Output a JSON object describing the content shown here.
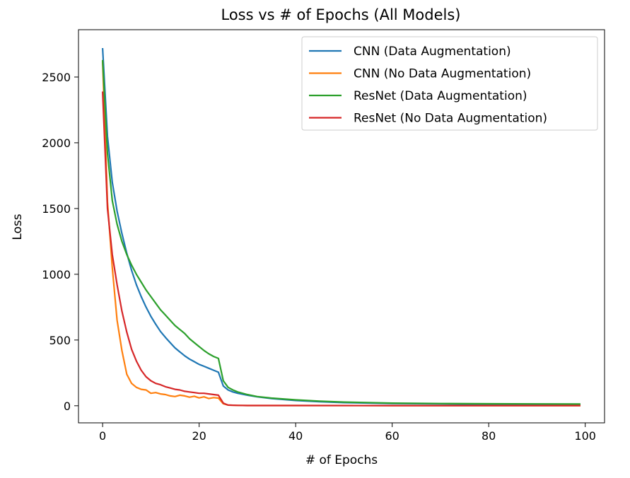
{
  "chart_data": {
    "type": "line",
    "title": "Loss vs # of Epochs (All Models)",
    "xlabel": "# of Epochs",
    "ylabel": "Loss",
    "xlim": [
      -5,
      104
    ],
    "ylim": [
      -130,
      2860
    ],
    "xticks": [
      0,
      20,
      40,
      60,
      80,
      100
    ],
    "yticks": [
      0,
      500,
      1000,
      1500,
      2000,
      2500
    ],
    "grid": false,
    "legend_position": "top-right",
    "series": [
      {
        "name": "CNN (Data Augmentation)",
        "color": "#1f77b4",
        "x": [
          0,
          1,
          2,
          3,
          4,
          5,
          6,
          7,
          8,
          9,
          10,
          11,
          12,
          13,
          14,
          15,
          16,
          17,
          18,
          19,
          20,
          21,
          22,
          23,
          24,
          25,
          26,
          27,
          28,
          30,
          32,
          35,
          40,
          45,
          50,
          60,
          70,
          80,
          90,
          99
        ],
        "values": [
          2720,
          2050,
          1700,
          1480,
          1310,
          1160,
          1030,
          920,
          830,
          750,
          680,
          620,
          565,
          520,
          480,
          440,
          410,
          380,
          355,
          335,
          315,
          300,
          285,
          270,
          255,
          150,
          120,
          105,
          95,
          80,
          68,
          55,
          40,
          30,
          24,
          17,
          14,
          12,
          11,
          10
        ]
      },
      {
        "name": "CNN (No Data Augmentation)",
        "color": "#ff7f0e",
        "x": [
          0,
          1,
          2,
          3,
          4,
          5,
          6,
          7,
          8,
          9,
          10,
          11,
          12,
          13,
          14,
          15,
          16,
          17,
          18,
          19,
          20,
          21,
          22,
          23,
          24,
          25,
          26,
          28,
          30,
          40,
          60,
          80,
          99
        ],
        "values": [
          2620,
          1550,
          1050,
          650,
          420,
          240,
          170,
          140,
          125,
          120,
          95,
          100,
          90,
          85,
          75,
          70,
          80,
          75,
          65,
          72,
          60,
          68,
          55,
          62,
          58,
          15,
          5,
          3,
          2,
          2,
          1,
          1,
          1
        ]
      },
      {
        "name": "ResNet (Data Augmentation)",
        "color": "#2ca02c",
        "x": [
          0,
          1,
          2,
          3,
          4,
          5,
          6,
          7,
          8,
          9,
          10,
          11,
          12,
          13,
          14,
          15,
          16,
          17,
          18,
          19,
          20,
          21,
          22,
          23,
          24,
          25,
          26,
          27,
          28,
          30,
          32,
          35,
          40,
          45,
          50,
          60,
          70,
          80,
          90,
          99
        ],
        "values": [
          2630,
          1920,
          1560,
          1380,
          1250,
          1150,
          1070,
          1000,
          940,
          880,
          830,
          780,
          730,
          690,
          650,
          610,
          580,
          550,
          510,
          480,
          450,
          420,
          395,
          375,
          360,
          190,
          140,
          120,
          105,
          85,
          70,
          58,
          45,
          35,
          28,
          20,
          17,
          15,
          14,
          13
        ]
      },
      {
        "name": "ResNet (No Data Augmentation)",
        "color": "#d62728",
        "x": [
          0,
          1,
          2,
          3,
          4,
          5,
          6,
          7,
          8,
          9,
          10,
          11,
          12,
          13,
          14,
          15,
          16,
          17,
          18,
          19,
          20,
          21,
          22,
          23,
          24,
          25,
          26,
          28,
          30,
          40,
          60,
          80,
          99
        ],
        "values": [
          2390,
          1500,
          1150,
          920,
          720,
          560,
          430,
          340,
          270,
          220,
          190,
          170,
          160,
          145,
          135,
          125,
          120,
          110,
          105,
          100,
          95,
          95,
          90,
          85,
          80,
          20,
          5,
          3,
          2,
          2,
          1,
          1,
          1
        ]
      }
    ]
  }
}
